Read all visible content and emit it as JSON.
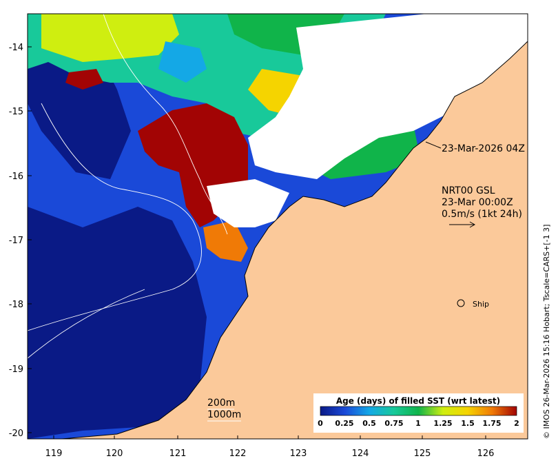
{
  "map": {
    "lon_ticks": [
      "119",
      "120",
      "121",
      "122",
      "123",
      "124",
      "125",
      "126"
    ],
    "lat_ticks": [
      "-14",
      "-15",
      "-16",
      "-17",
      "-18",
      "-19",
      "-20"
    ],
    "colors": {
      "land": "#fbc99a",
      "age_0": "#0a1a86",
      "age_0_25": "#1a49d8",
      "age_0_5": "#14a8e6",
      "age_0_75": "#18c99a",
      "age_1": "#10b44a",
      "age_1_25": "#cfee10",
      "age_1_5": "#f5d400",
      "age_1_75": "#f07a06",
      "age_2": "#a20404"
    }
  },
  "annotations": {
    "sst_time": "23-Mar-2026 04Z",
    "current_title": "NRT00 GSL",
    "current_time": "23-Mar 00:00Z",
    "current_scale": "0.5m/s (1kt 24h)",
    "ship_label": "Ship",
    "contour_200": "200m",
    "contour_1000": "1000m"
  },
  "colorbar": {
    "title": "Age (days) of filled SST (wrt latest)",
    "ticks": [
      "0",
      "0.25",
      "0.5",
      "0.75",
      "1",
      "1.25",
      "1.5",
      "1.75",
      "2"
    ],
    "stops": [
      "#0a1a86",
      "#1a49d8",
      "#14a8e6",
      "#18c99a",
      "#10b44a",
      "#cfee10",
      "#f5d400",
      "#f07a06",
      "#a20404"
    ]
  },
  "credit": "© IMOS 26-Mar-2026 15:16 Hobart; Tscale=CARS+[-1 3]"
}
